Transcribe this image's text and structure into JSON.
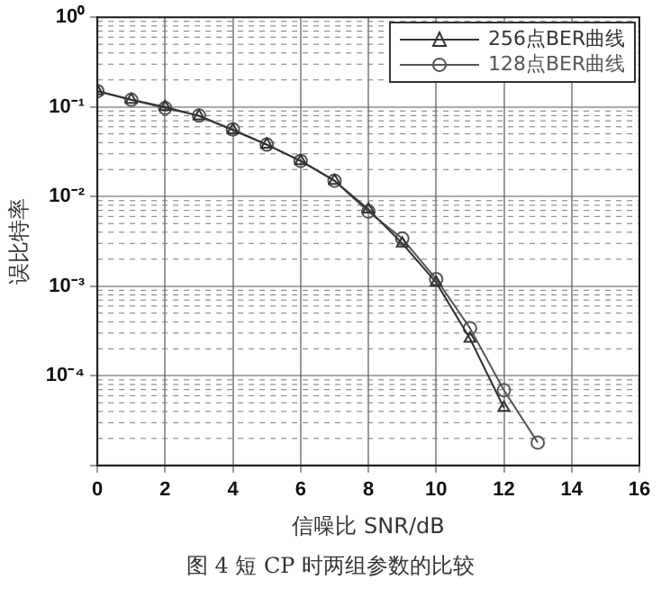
{
  "chart_data": {
    "type": "line",
    "title": "图 4  短 CP 时两组参数的比较",
    "xlabel": "信噪比 SNR/dB",
    "ylabel": "误比特率",
    "x": [
      0,
      1,
      2,
      3,
      4,
      5,
      6,
      7,
      8,
      9,
      10,
      11,
      12,
      13
    ],
    "series": [
      {
        "name": "256点BER曲线",
        "color": "#333333",
        "marker": "triangle",
        "values": [
          0.15,
          0.12,
          0.1,
          0.079,
          0.055,
          0.038,
          0.025,
          0.015,
          0.0072,
          0.003,
          0.0011,
          0.00026,
          4.4e-05,
          null
        ]
      },
      {
        "name": "128点BER曲线",
        "color": "#555555",
        "marker": "circle",
        "values": [
          0.15,
          0.12,
          0.097,
          0.08,
          0.056,
          0.038,
          0.025,
          0.015,
          0.0068,
          0.0034,
          0.0012,
          0.00034,
          6.9e-05,
          1.8e-05
        ]
      }
    ],
    "xlim": [
      0,
      16
    ],
    "xticks": [
      0,
      2,
      4,
      6,
      8,
      10,
      12,
      14,
      16
    ],
    "ylim": [
      1e-05,
      1
    ],
    "yticks": [
      {
        "value": 1e-05,
        "label": null
      },
      {
        "value": 0.0001,
        "label": "10⁻⁴"
      },
      {
        "value": 0.001,
        "label": "10⁻³"
      },
      {
        "value": 0.01,
        "label": "10⁻²"
      },
      {
        "value": 0.1,
        "label": "10⁻¹"
      },
      {
        "value": 1,
        "label": "10⁰"
      }
    ],
    "log": "y",
    "grid": true,
    "legend": "top right",
    "line_style": "solid"
  }
}
